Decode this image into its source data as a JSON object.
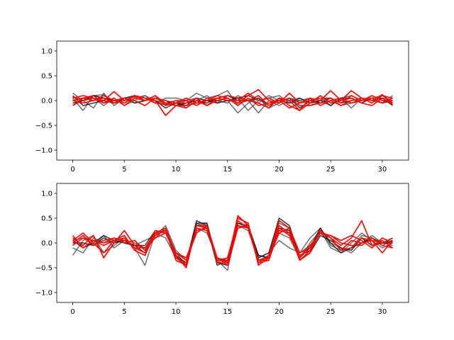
{
  "chart_data": [
    {
      "type": "line",
      "title": "",
      "xlabel": "",
      "ylabel": "",
      "xlim": [
        -1.55,
        32.55
      ],
      "ylim": [
        -1.2,
        1.2
      ],
      "xticks": [
        0,
        5,
        10,
        15,
        20,
        25,
        30
      ],
      "yticks": [
        -1.0,
        -0.5,
        0.0,
        0.5,
        1.0
      ],
      "xtick_labels": [
        "0",
        "5",
        "10",
        "15",
        "20",
        "25",
        "30"
      ],
      "ytick_labels": [
        "−1.0",
        "−0.5",
        "0.0",
        "0.5",
        "1.0"
      ],
      "legend": "none",
      "grid": false,
      "x": [
        0,
        1,
        2,
        3,
        4,
        5,
        6,
        7,
        8,
        9,
        10,
        11,
        12,
        13,
        14,
        15,
        16,
        17,
        18,
        19,
        20,
        21,
        22,
        23,
        24,
        25,
        26,
        27,
        28,
        29,
        30,
        31
      ],
      "series": [
        {
          "color": "#555555",
          "values": [
            0.15,
            0.0,
            0.1,
            0.05,
            0.0,
            -0.05,
            0.05,
            0.1,
            0.0,
            -0.1,
            -0.05,
            0.0,
            0.15,
            0.05,
            0.1,
            0.2,
            -0.1,
            0.05,
            -0.05,
            0.1,
            0.0,
            0.05,
            -0.05,
            0.0,
            0.05,
            -0.1,
            0.05,
            0.1,
            0.0,
            0.05,
            0.1,
            -0.05
          ]
        },
        {
          "color": "#555555",
          "values": [
            0.05,
            -0.2,
            0.1,
            0.12,
            -0.05,
            0.0,
            0.1,
            0.05,
            0.0,
            -0.05,
            -0.1,
            0.0,
            0.05,
            -0.1,
            0.05,
            0.0,
            -0.25,
            -0.05,
            0.05,
            -0.15,
            -0.05,
            0.05,
            0.0,
            -0.1,
            0.0,
            0.05,
            -0.1,
            -0.05,
            0.05,
            0.0,
            -0.05,
            0.1
          ]
        },
        {
          "color": "#555555",
          "values": [
            -0.1,
            0.0,
            -0.15,
            0.15,
            -0.1,
            0.05,
            -0.05,
            0.0,
            0.1,
            -0.05,
            0.0,
            -0.15,
            0.0,
            0.1,
            -0.05,
            0.1,
            0.05,
            -0.2,
            0.0,
            0.05,
            0.1,
            -0.05,
            0.0,
            0.05,
            -0.05,
            0.0,
            0.05,
            -0.15,
            0.05,
            0.0,
            0.05,
            0.0
          ]
        },
        {
          "color": "#555555",
          "values": [
            0.0,
            0.05,
            0.05,
            -0.1,
            0.05,
            -0.1,
            0.0,
            0.1,
            -0.05,
            0.05,
            0.05,
            0.0,
            -0.1,
            0.0,
            0.0,
            -0.05,
            0.1,
            0.0,
            -0.25,
            0.0,
            -0.1,
            0.0,
            0.05,
            -0.05,
            0.1,
            -0.05,
            0.0,
            0.05,
            -0.05,
            0.1,
            0.0,
            -0.05
          ]
        },
        {
          "color": "#111111",
          "values": [
            0.1,
            -0.1,
            -0.05,
            0.0,
            -0.05,
            0.05,
            0.1,
            0.05,
            0.0,
            -0.15,
            -0.05,
            -0.1,
            0.05,
            0.0,
            -0.05,
            0.0,
            0.05,
            0.1,
            0.0,
            0.05,
            -0.05,
            0.05,
            -0.15,
            0.0,
            -0.05,
            0.05,
            -0.05,
            0.0,
            0.05,
            0.0,
            0.05,
            -0.1
          ]
        },
        {
          "color": "#111111",
          "values": [
            -0.05,
            0.0,
            0.1,
            0.05,
            0.0,
            0.05,
            -0.05,
            0.0,
            0.05,
            0.0,
            -0.1,
            -0.05,
            0.0,
            -0.05,
            0.05,
            0.1,
            0.0,
            0.0,
            0.05,
            -0.1,
            0.0,
            -0.05,
            0.05,
            -0.05,
            0.0,
            -0.1,
            0.05,
            0.05,
            -0.05,
            0.05,
            -0.05,
            0.0
          ]
        },
        {
          "color": "#ff0000",
          "values": [
            0.05,
            0.1,
            0.05,
            -0.05,
            0.0,
            -0.05,
            0.1,
            0.05,
            0.0,
            -0.3,
            -0.1,
            -0.1,
            -0.05,
            0.0,
            0.1,
            0.05,
            -0.05,
            0.1,
            0.22,
            0.0,
            -0.05,
            0.05,
            -0.1,
            -0.1,
            -0.05,
            0.0,
            -0.1,
            0.0,
            0.05,
            -0.05,
            0.1,
            0.05
          ]
        },
        {
          "color": "#ff0000",
          "values": [
            0.0,
            0.05,
            0.1,
            -0.05,
            0.05,
            -0.1,
            0.05,
            0.0,
            0.05,
            -0.05,
            -0.1,
            -0.15,
            0.0,
            -0.1,
            0.0,
            0.05,
            -0.05,
            0.0,
            -0.05,
            -0.15,
            0.05,
            -0.1,
            -0.2,
            -0.05,
            0.1,
            -0.05,
            0.0,
            0.2,
            0.05,
            0.0,
            0.12,
            -0.05
          ]
        },
        {
          "color": "#ff0000",
          "values": [
            -0.1,
            0.05,
            0.0,
            0.1,
            0.0,
            0.05,
            0.0,
            -0.1,
            0.05,
            0.0,
            -0.05,
            -0.05,
            0.05,
            -0.1,
            0.05,
            0.0,
            0.0,
            0.15,
            0.0,
            0.05,
            -0.05,
            0.15,
            -0.05,
            0.0,
            0.05,
            0.05,
            -0.05,
            0.1,
            0.0,
            0.1,
            0.0,
            0.0
          ]
        },
        {
          "color": "#ff0000",
          "values": [
            0.08,
            0.0,
            0.05,
            0.0,
            0.18,
            0.0,
            0.08,
            0.05,
            -0.05,
            -0.08,
            0.0,
            0.0,
            -0.1,
            0.05,
            0.0,
            0.05,
            -0.1,
            0.05,
            -0.1,
            -0.05,
            0.0,
            -0.15,
            -0.05,
            0.05,
            0.0,
            0.2,
            0.0,
            0.05,
            -0.05,
            -0.1,
            0.05,
            -0.08
          ]
        },
        {
          "color": "#ff0000",
          "values": [
            0.0,
            -0.05,
            0.0,
            0.05,
            -0.05,
            0.0,
            0.1,
            0.0,
            0.1,
            -0.1,
            -0.05,
            0.05,
            -0.05,
            0.0,
            0.05,
            0.1,
            0.05,
            0.0,
            0.1,
            -0.1,
            0.05,
            0.0,
            -0.2,
            0.05,
            -0.1,
            0.0,
            0.05,
            -0.05,
            0.0,
            0.05,
            -0.05,
            0.05
          ]
        }
      ]
    },
    {
      "type": "line",
      "title": "",
      "xlabel": "",
      "ylabel": "",
      "xlim": [
        -1.55,
        32.55
      ],
      "ylim": [
        -1.2,
        1.2
      ],
      "xticks": [
        0,
        5,
        10,
        15,
        20,
        25,
        30
      ],
      "yticks": [
        -1.0,
        -0.5,
        0.0,
        0.5,
        1.0
      ],
      "xtick_labels": [
        "0",
        "5",
        "10",
        "15",
        "20",
        "25",
        "30"
      ],
      "ytick_labels": [
        "−1.0",
        "−0.5",
        "0.0",
        "0.5",
        "1.0"
      ],
      "legend": "none",
      "grid": false,
      "x": [
        0,
        1,
        2,
        3,
        4,
        5,
        6,
        7,
        8,
        9,
        10,
        11,
        12,
        13,
        14,
        15,
        16,
        17,
        18,
        19,
        20,
        21,
        22,
        23,
        24,
        25,
        26,
        27,
        28,
        29,
        30,
        31
      ],
      "series": [
        {
          "color": "#555555",
          "values": [
            -0.25,
            0.05,
            0.15,
            -0.2,
            -0.05,
            0.1,
            -0.1,
            -0.45,
            0.2,
            0.1,
            -0.3,
            -0.4,
            0.4,
            0.3,
            -0.4,
            -0.3,
            0.35,
            0.25,
            -0.3,
            -0.2,
            0.05,
            -0.1,
            -0.2,
            0.1,
            0.3,
            -0.05,
            -0.15,
            -0.1,
            0.15,
            0.1,
            -0.05,
            0.05
          ]
        },
        {
          "color": "#555555",
          "values": [
            -0.1,
            -0.2,
            0.1,
            0.0,
            0.05,
            0.0,
            -0.05,
            0.05,
            0.15,
            0.35,
            -0.15,
            -0.35,
            0.3,
            0.2,
            -0.3,
            -0.35,
            0.3,
            0.35,
            -0.25,
            -0.3,
            0.2,
            0.1,
            -0.3,
            0.0,
            0.25,
            -0.1,
            -0.2,
            0.0,
            0.2,
            0.05,
            -0.1,
            0.0
          ]
        },
        {
          "color": "#555555",
          "values": [
            0.05,
            0.1,
            -0.05,
            0.15,
            -0.1,
            0.05,
            0.0,
            -0.1,
            0.1,
            0.3,
            -0.2,
            -0.45,
            0.35,
            0.4,
            -0.35,
            -0.55,
            0.4,
            0.3,
            -0.35,
            -0.25,
            0.4,
            0.3,
            -0.2,
            -0.05,
            0.2,
            0.0,
            -0.1,
            -0.2,
            0.0,
            0.15,
            0.0,
            -0.05
          ]
        },
        {
          "color": "#111111",
          "values": [
            0.0,
            0.0,
            -0.05,
            0.1,
            0.0,
            0.05,
            -0.05,
            -0.05,
            0.25,
            0.2,
            -0.25,
            -0.4,
            0.45,
            0.35,
            -0.45,
            -0.35,
            0.35,
            0.3,
            -0.3,
            -0.2,
            0.5,
            0.35,
            -0.3,
            -0.1,
            0.3,
            0.0,
            -0.2,
            -0.1,
            0.0,
            0.1,
            0.0,
            0.05
          ]
        },
        {
          "color": "#111111",
          "values": [
            0.05,
            -0.1,
            0.0,
            0.15,
            0.05,
            0.0,
            -0.05,
            -0.2,
            0.2,
            0.25,
            -0.3,
            -0.45,
            0.4,
            0.4,
            -0.4,
            -0.45,
            0.4,
            0.35,
            -0.25,
            -0.3,
            0.3,
            0.25,
            -0.35,
            -0.2,
            0.15,
            0.05,
            -0.1,
            -0.15,
            0.1,
            -0.05,
            0.0,
            0.0
          ]
        },
        {
          "color": "#ff0000",
          "values": [
            0.1,
            -0.05,
            0.15,
            -0.3,
            0.0,
            0.25,
            -0.05,
            -0.1,
            0.2,
            0.25,
            -0.35,
            -0.45,
            0.35,
            0.35,
            -0.4,
            -0.4,
            0.5,
            0.4,
            -0.45,
            -0.3,
            0.2,
            0.3,
            -0.35,
            -0.15,
            0.25,
            0.1,
            -0.05,
            0.1,
            0.45,
            -0.05,
            0.05,
            -0.1
          ]
        },
        {
          "color": "#ff0000",
          "values": [
            0.05,
            0.2,
            0.0,
            -0.2,
            0.05,
            0.15,
            -0.15,
            -0.25,
            0.2,
            0.3,
            -0.25,
            -0.5,
            0.35,
            0.3,
            -0.35,
            -0.3,
            0.45,
            0.3,
            -0.4,
            -0.35,
            0.25,
            0.2,
            -0.35,
            -0.2,
            0.25,
            0.1,
            -0.15,
            -0.1,
            0.1,
            0.05,
            -0.2,
            0.05
          ]
        },
        {
          "color": "#ff0000",
          "values": [
            0.15,
            -0.1,
            0.05,
            0.0,
            0.1,
            0.0,
            0.05,
            -0.15,
            0.25,
            0.2,
            -0.2,
            -0.3,
            0.25,
            0.3,
            -0.35,
            -0.35,
            0.35,
            0.3,
            -0.35,
            -0.3,
            0.45,
            0.3,
            -0.2,
            -0.1,
            0.2,
            0.15,
            0.0,
            -0.05,
            -0.05,
            0.1,
            -0.05,
            -0.1
          ]
        },
        {
          "color": "#ff0000",
          "values": [
            -0.05,
            0.1,
            0.05,
            -0.05,
            0.05,
            0.1,
            -0.1,
            -0.2,
            0.15,
            0.25,
            -0.3,
            -0.4,
            0.3,
            0.25,
            -0.3,
            -0.45,
            0.3,
            0.35,
            -0.4,
            -0.25,
            0.35,
            0.2,
            -0.3,
            -0.05,
            0.2,
            0.15,
            0.05,
            0.15,
            0.05,
            -0.1,
            0.1,
            0.0
          ]
        },
        {
          "color": "#ff0000",
          "values": [
            0.0,
            0.15,
            -0.05,
            0.05,
            0.1,
            0.05,
            -0.1,
            -0.1,
            0.1,
            0.2,
            -0.2,
            -0.35,
            0.2,
            0.35,
            -0.3,
            -0.4,
            0.55,
            0.35,
            -0.35,
            -0.35,
            0.3,
            0.15,
            -0.25,
            -0.15,
            0.2,
            0.1,
            -0.15,
            0.05,
            0.0,
            0.05,
            0.0,
            0.1
          ]
        }
      ]
    }
  ]
}
